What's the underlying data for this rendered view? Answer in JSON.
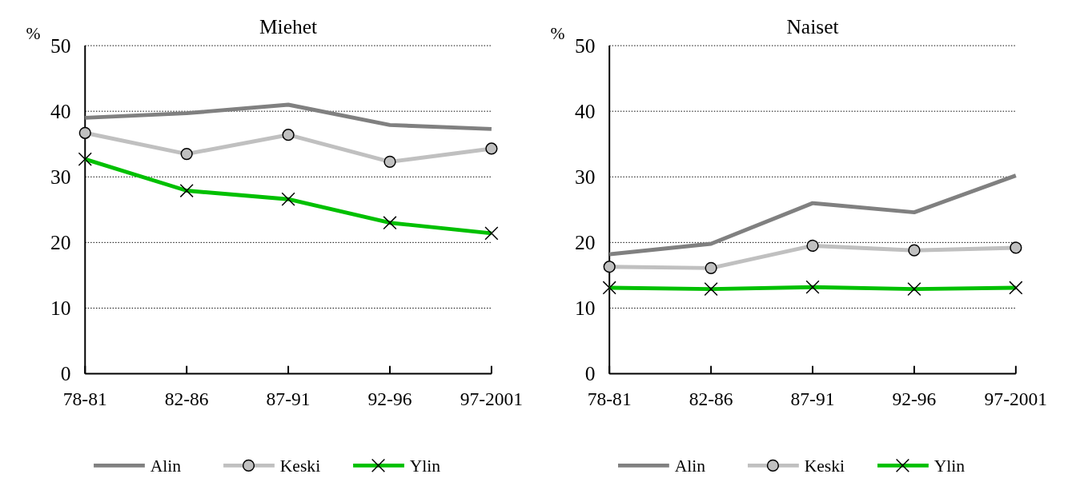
{
  "chart_data": [
    {
      "type": "line",
      "title": "Miehet",
      "ylabel": "%",
      "categories": [
        "78-81",
        "82-86",
        "87-91",
        "92-96",
        "97-2001"
      ],
      "ylim": [
        0,
        50
      ],
      "yticks": [
        0,
        10,
        20,
        30,
        40,
        50
      ],
      "grid": "y",
      "legend": "bottom",
      "series": [
        {
          "name": "Alin",
          "color": "#808080",
          "marker": "none",
          "values": [
            39,
            39.7,
            41,
            37.9,
            37.3
          ]
        },
        {
          "name": "Keski",
          "color": "#c0c0c0",
          "marker": "circle",
          "values": [
            36.7,
            33.5,
            36.4,
            32.3,
            34.3
          ]
        },
        {
          "name": "Ylin",
          "color": "#00c000",
          "marker": "cross",
          "values": [
            32.7,
            27.9,
            26.6,
            23,
            21.4
          ]
        }
      ]
    },
    {
      "type": "line",
      "title": "Naiset",
      "ylabel": "%",
      "categories": [
        "78-81",
        "82-86",
        "87-91",
        "92-96",
        "97-2001"
      ],
      "ylim": [
        0,
        50
      ],
      "yticks": [
        0,
        10,
        20,
        30,
        40,
        50
      ],
      "grid": "y",
      "legend": "bottom",
      "series": [
        {
          "name": "Alin",
          "color": "#808080",
          "marker": "none",
          "values": [
            18.2,
            19.8,
            26,
            24.6,
            30.2
          ]
        },
        {
          "name": "Keski",
          "color": "#c0c0c0",
          "marker": "circle",
          "values": [
            16.3,
            16.1,
            19.5,
            18.8,
            19.2
          ]
        },
        {
          "name": "Ylin",
          "color": "#00c000",
          "marker": "cross",
          "values": [
            13.1,
            12.9,
            13.2,
            12.9,
            13.1
          ]
        }
      ]
    }
  ]
}
